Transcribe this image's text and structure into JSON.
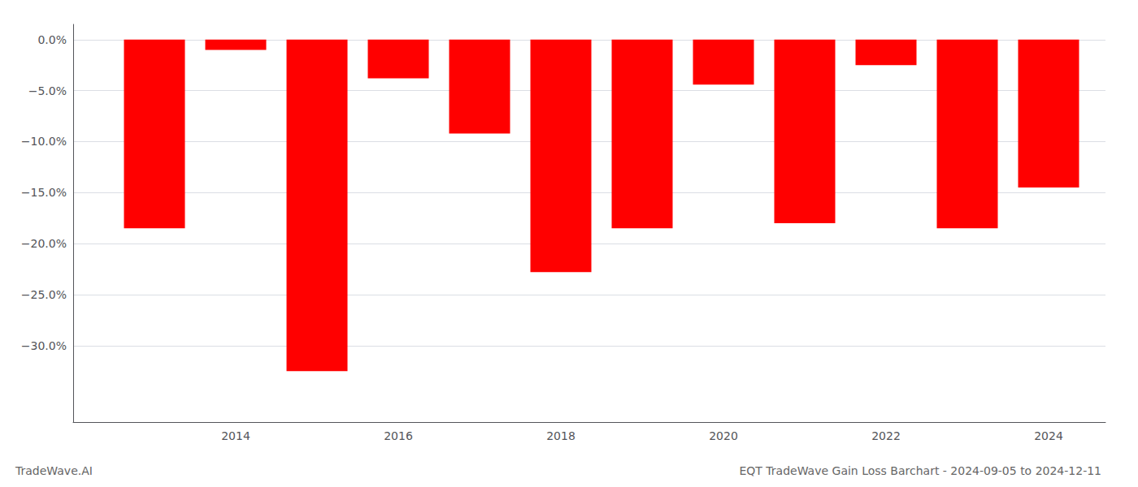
{
  "chart_data": {
    "type": "bar",
    "title": "EQT TradeWave Gain Loss Barchart - 2024-09-05 to 2024-12-11",
    "annotations": [
      "TradeWave.AI"
    ],
    "x": [
      2013,
      2014,
      2015,
      2016,
      2017,
      2018,
      2019,
      2020,
      2021,
      2022,
      2023,
      2024
    ],
    "values": [
      -0.185,
      -0.01,
      -0.325,
      -0.038,
      -0.092,
      -0.228,
      -0.185,
      -0.044,
      -0.18,
      -0.025,
      -0.185,
      -0.145
    ],
    "color": "#ff0000",
    "xlim": [
      2012,
      2024.7
    ],
    "xticks": [
      2014,
      2016,
      2018,
      2020,
      2022,
      2024
    ],
    "ylim": [
      -0.375,
      0.015
    ],
    "yticks": [
      {
        "value": 0.0,
        "label": "0.0%"
      },
      {
        "value": -0.05,
        "label": "−5.0%"
      },
      {
        "value": -0.1,
        "label": "−10.0%"
      },
      {
        "value": -0.15,
        "label": "−15.0%"
      },
      {
        "value": -0.2,
        "label": "−20.0%"
      },
      {
        "value": -0.25,
        "label": "−25.0%"
      },
      {
        "value": -0.3,
        "label": "−30.0%"
      }
    ],
    "grid": true
  }
}
